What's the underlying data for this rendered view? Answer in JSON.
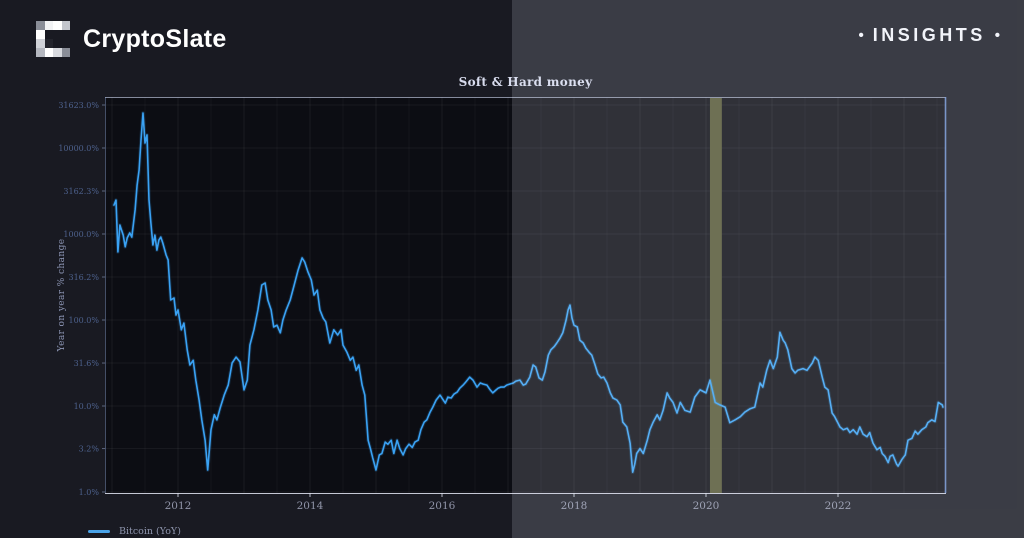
{
  "header": {
    "brand": "CryptoSlate",
    "badge": {
      "bullet": "•",
      "label": "INSIGHTS"
    }
  },
  "legend": {
    "items": [
      {
        "label": "Bitcoin (YoY)",
        "color": "#4aa3e8"
      }
    ]
  },
  "colors": {
    "background": "#191a22",
    "plot_background": "#0c0d13",
    "line": "#3aa2f4",
    "band": "#5d5e37",
    "axis": "#aab4d2",
    "y_tick_text": "#5a73a8",
    "x_tick_text": "#9094a8"
  },
  "chart_data": {
    "type": "line",
    "title": "Soft & Hard money",
    "xlabel": "",
    "ylabel": "Year on year % change",
    "y_scale": "log",
    "grid": true,
    "legend_position": "bottom-left",
    "x_range": [
      2010.9,
      2023.65
    ],
    "y_ticks": [
      {
        "label": "31623.0%",
        "value": 31623
      },
      {
        "label": "10000.0%",
        "value": 10000
      },
      {
        "label": "3162.3%",
        "value": 3162.3
      },
      {
        "label": "1000.0%",
        "value": 1000
      },
      {
        "label": "316.2%",
        "value": 316.2
      },
      {
        "label": "100.0%",
        "value": 100
      },
      {
        "label": "31.6%",
        "value": 31.6
      },
      {
        "label": "10.0%",
        "value": 10
      },
      {
        "label": "3.2%",
        "value": 3.2
      },
      {
        "label": "1.0%",
        "value": 1
      }
    ],
    "x_ticks": [
      2012,
      2014,
      2016,
      2018,
      2020,
      2022
    ],
    "band": {
      "x_start": 2020.06,
      "x_end": 2020.24,
      "color": "#5d5e37",
      "name": "halving-highlight-band"
    },
    "series": [
      {
        "name": "Bitcoin (YoY)",
        "color": "#3aa2f4",
        "points": [
          [
            2011.03,
            2170
          ],
          [
            2011.06,
            2480
          ],
          [
            2011.09,
            620
          ],
          [
            2011.12,
            1270
          ],
          [
            2011.17,
            970
          ],
          [
            2011.2,
            710
          ],
          [
            2011.23,
            900
          ],
          [
            2011.27,
            1030
          ],
          [
            2011.3,
            920
          ],
          [
            2011.35,
            1900
          ],
          [
            2011.38,
            3700
          ],
          [
            2011.41,
            5550
          ],
          [
            2011.44,
            12400
          ],
          [
            2011.47,
            25500
          ],
          [
            2011.5,
            11400
          ],
          [
            2011.53,
            14200
          ],
          [
            2011.56,
            2480
          ],
          [
            2011.59,
            1340
          ],
          [
            2011.62,
            745
          ],
          [
            2011.65,
            970
          ],
          [
            2011.68,
            650
          ],
          [
            2011.71,
            850
          ],
          [
            2011.74,
            920
          ],
          [
            2011.77,
            785
          ],
          [
            2011.82,
            570
          ],
          [
            2011.85,
            500
          ],
          [
            2011.89,
            171
          ],
          [
            2011.94,
            180
          ],
          [
            2011.97,
            114
          ],
          [
            2012.0,
            131
          ],
          [
            2012.05,
            77
          ],
          [
            2012.09,
            92
          ],
          [
            2012.14,
            45
          ],
          [
            2012.18,
            30
          ],
          [
            2012.23,
            34
          ],
          [
            2012.27,
            20
          ],
          [
            2012.32,
            11.7
          ],
          [
            2012.36,
            6.9
          ],
          [
            2012.41,
            4.0
          ],
          [
            2012.45,
            1.8
          ],
          [
            2012.5,
            5.3
          ],
          [
            2012.55,
            7.9
          ],
          [
            2012.59,
            6.9
          ],
          [
            2012.64,
            9.5
          ],
          [
            2012.7,
            13.4
          ],
          [
            2012.76,
            17.5
          ],
          [
            2012.82,
            31.6
          ],
          [
            2012.88,
            37
          ],
          [
            2012.94,
            32.5
          ],
          [
            2013.0,
            15.4
          ],
          [
            2013.05,
            20
          ],
          [
            2013.09,
            51
          ],
          [
            2013.15,
            77
          ],
          [
            2013.21,
            131
          ],
          [
            2013.27,
            255
          ],
          [
            2013.32,
            269
          ],
          [
            2013.36,
            171
          ],
          [
            2013.41,
            131
          ],
          [
            2013.45,
            83
          ],
          [
            2013.5,
            87
          ],
          [
            2013.55,
            71
          ],
          [
            2013.59,
            100
          ],
          [
            2013.64,
            131
          ],
          [
            2013.7,
            171
          ],
          [
            2013.76,
            255
          ],
          [
            2013.82,
            380
          ],
          [
            2013.88,
            527
          ],
          [
            2013.92,
            472
          ],
          [
            2013.97,
            361
          ],
          [
            2014.02,
            292
          ],
          [
            2014.06,
            195
          ],
          [
            2014.11,
            222
          ],
          [
            2014.15,
            131
          ],
          [
            2014.2,
            105
          ],
          [
            2014.24,
            95
          ],
          [
            2014.3,
            54
          ],
          [
            2014.36,
            77
          ],
          [
            2014.42,
            67
          ],
          [
            2014.47,
            77
          ],
          [
            2014.5,
            51
          ],
          [
            2014.56,
            42
          ],
          [
            2014.61,
            34
          ],
          [
            2014.65,
            37
          ],
          [
            2014.7,
            26
          ],
          [
            2014.74,
            30
          ],
          [
            2014.79,
            17.5
          ],
          [
            2014.83,
            13.4
          ],
          [
            2014.88,
            4.0
          ],
          [
            2014.92,
            3.1
          ],
          [
            2014.95,
            2.5
          ],
          [
            2015.0,
            1.8
          ],
          [
            2015.05,
            2.7
          ],
          [
            2015.09,
            2.8
          ],
          [
            2015.14,
            3.8
          ],
          [
            2015.18,
            3.6
          ],
          [
            2015.23,
            4.0
          ],
          [
            2015.27,
            2.8
          ],
          [
            2015.32,
            4.0
          ],
          [
            2015.36,
            3.2
          ],
          [
            2015.41,
            2.7
          ],
          [
            2015.45,
            3.2
          ],
          [
            2015.5,
            3.6
          ],
          [
            2015.55,
            3.3
          ],
          [
            2015.59,
            3.8
          ],
          [
            2015.64,
            4.0
          ],
          [
            2015.68,
            5.3
          ],
          [
            2015.73,
            6.5
          ],
          [
            2015.77,
            6.9
          ],
          [
            2015.82,
            8.5
          ],
          [
            2015.86,
            9.7
          ],
          [
            2015.91,
            11.7
          ],
          [
            2015.97,
            13.4
          ],
          [
            2016.02,
            11.7
          ],
          [
            2016.05,
            10.8
          ],
          [
            2016.09,
            12.7
          ],
          [
            2016.14,
            12.4
          ],
          [
            2016.18,
            13.7
          ],
          [
            2016.23,
            14.5
          ],
          [
            2016.27,
            16.1
          ],
          [
            2016.32,
            17.5
          ],
          [
            2016.36,
            19
          ],
          [
            2016.42,
            21.7
          ],
          [
            2016.47,
            20
          ],
          [
            2016.53,
            16.6
          ],
          [
            2016.58,
            18.5
          ],
          [
            2016.62,
            18
          ],
          [
            2016.68,
            17.5
          ],
          [
            2016.73,
            15.4
          ],
          [
            2016.77,
            14.2
          ],
          [
            2016.82,
            15.4
          ],
          [
            2016.85,
            16.1
          ],
          [
            2016.89,
            16.6
          ],
          [
            2016.94,
            16.6
          ],
          [
            2016.98,
            17.5
          ],
          [
            2017.03,
            18
          ],
          [
            2017.08,
            18.5
          ],
          [
            2017.12,
            19.5
          ],
          [
            2017.18,
            20
          ],
          [
            2017.23,
            17.5
          ],
          [
            2017.27,
            18
          ],
          [
            2017.33,
            21.7
          ],
          [
            2017.38,
            30
          ],
          [
            2017.42,
            28.4
          ],
          [
            2017.47,
            21.2
          ],
          [
            2017.52,
            20
          ],
          [
            2017.56,
            24.9
          ],
          [
            2017.61,
            39
          ],
          [
            2017.65,
            45
          ],
          [
            2017.7,
            49
          ],
          [
            2017.74,
            54
          ],
          [
            2017.79,
            62
          ],
          [
            2017.83,
            71
          ],
          [
            2017.88,
            100
          ],
          [
            2017.91,
            131
          ],
          [
            2017.94,
            149
          ],
          [
            2017.97,
            105
          ],
          [
            2018.0,
            87
          ],
          [
            2018.05,
            83
          ],
          [
            2018.09,
            58
          ],
          [
            2018.14,
            54
          ],
          [
            2018.18,
            47
          ],
          [
            2018.23,
            42
          ],
          [
            2018.27,
            39
          ],
          [
            2018.32,
            30
          ],
          [
            2018.36,
            23.6
          ],
          [
            2018.41,
            21.2
          ],
          [
            2018.45,
            21.7
          ],
          [
            2018.5,
            18.5
          ],
          [
            2018.55,
            14.2
          ],
          [
            2018.59,
            12.4
          ],
          [
            2018.65,
            11.7
          ],
          [
            2018.7,
            10.3
          ],
          [
            2018.74,
            6.5
          ],
          [
            2018.8,
            5.7
          ],
          [
            2018.85,
            3.7
          ],
          [
            2018.89,
            1.7
          ],
          [
            2018.92,
            2.1
          ],
          [
            2018.95,
            2.8
          ],
          [
            2019.0,
            3.2
          ],
          [
            2019.05,
            2.8
          ],
          [
            2019.11,
            4.0
          ],
          [
            2019.15,
            5.3
          ],
          [
            2019.2,
            6.5
          ],
          [
            2019.26,
            7.9
          ],
          [
            2019.3,
            6.9
          ],
          [
            2019.35,
            8.9
          ],
          [
            2019.41,
            14.2
          ],
          [
            2019.45,
            12.4
          ],
          [
            2019.5,
            11
          ],
          [
            2019.56,
            8.3
          ],
          [
            2019.61,
            11
          ],
          [
            2019.68,
            8.9
          ],
          [
            2019.76,
            8.5
          ],
          [
            2019.83,
            12.7
          ],
          [
            2019.91,
            15.4
          ],
          [
            2020.0,
            14.2
          ],
          [
            2020.06,
            20
          ],
          [
            2020.14,
            11
          ],
          [
            2020.21,
            10.3
          ],
          [
            2020.29,
            9.7
          ],
          [
            2020.36,
            6.4
          ],
          [
            2020.44,
            6.9
          ],
          [
            2020.52,
            7.5
          ],
          [
            2020.59,
            8.5
          ],
          [
            2020.67,
            9.3
          ],
          [
            2020.74,
            9.7
          ],
          [
            2020.82,
            18.5
          ],
          [
            2020.86,
            16.6
          ],
          [
            2020.92,
            26
          ],
          [
            2020.97,
            34
          ],
          [
            2021.02,
            27.2
          ],
          [
            2021.08,
            37
          ],
          [
            2021.12,
            72
          ],
          [
            2021.17,
            58
          ],
          [
            2021.2,
            54
          ],
          [
            2021.24,
            45
          ],
          [
            2021.3,
            27.2
          ],
          [
            2021.35,
            24.2
          ],
          [
            2021.39,
            26
          ],
          [
            2021.47,
            27.2
          ],
          [
            2021.53,
            26
          ],
          [
            2021.61,
            31.6
          ],
          [
            2021.65,
            37
          ],
          [
            2021.7,
            34
          ],
          [
            2021.76,
            21.7
          ],
          [
            2021.8,
            16.6
          ],
          [
            2021.85,
            15.4
          ],
          [
            2021.91,
            8.3
          ],
          [
            2021.95,
            7.5
          ],
          [
            2022.03,
            5.7
          ],
          [
            2022.08,
            5.3
          ],
          [
            2022.14,
            5.5
          ],
          [
            2022.18,
            4.9
          ],
          [
            2022.23,
            5.3
          ],
          [
            2022.29,
            4.7
          ],
          [
            2022.33,
            5.7
          ],
          [
            2022.38,
            4.7
          ],
          [
            2022.44,
            4.4
          ],
          [
            2022.48,
            4.9
          ],
          [
            2022.53,
            3.7
          ],
          [
            2022.59,
            3.1
          ],
          [
            2022.64,
            3.3
          ],
          [
            2022.67,
            2.8
          ],
          [
            2022.71,
            2.6
          ],
          [
            2022.76,
            2.2
          ],
          [
            2022.79,
            2.6
          ],
          [
            2022.83,
            2.7
          ],
          [
            2022.89,
            2.1
          ],
          [
            2022.91,
            2.0
          ],
          [
            2022.97,
            2.4
          ],
          [
            2023.02,
            2.7
          ],
          [
            2023.06,
            4.0
          ],
          [
            2023.12,
            4.2
          ],
          [
            2023.17,
            5.1
          ],
          [
            2023.21,
            4.7
          ],
          [
            2023.27,
            5.3
          ],
          [
            2023.33,
            5.7
          ],
          [
            2023.36,
            6.4
          ],
          [
            2023.42,
            6.9
          ],
          [
            2023.47,
            6.6
          ],
          [
            2023.52,
            11
          ],
          [
            2023.58,
            10.3
          ],
          [
            2023.59,
            9.7
          ]
        ]
      }
    ]
  }
}
